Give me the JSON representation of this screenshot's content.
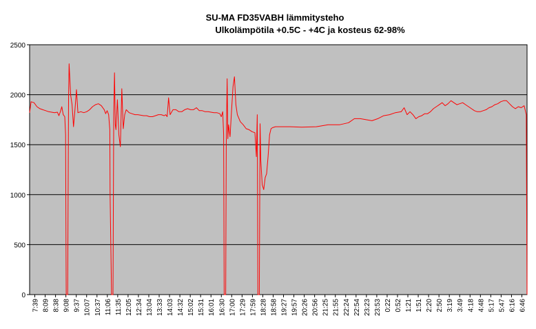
{
  "chart_data": {
    "type": "line",
    "title": "SU-MA FD35VABH lämmitysteho",
    "subtitle": "Ulkolämpötila  +0.5C - +4C ja kosteus 62-98%",
    "xlabel": "",
    "ylabel": "",
    "ylim": [
      0,
      2500
    ],
    "yticks": [
      0,
      500,
      1000,
      1500,
      2000,
      2500
    ],
    "grid": "horizontal",
    "legend": "none",
    "colors": {
      "plot_background": "#c0c0c0",
      "line": "#ff0000",
      "gridline": "#000000"
    },
    "xticks": [
      "7:39",
      "8:09",
      "8:38",
      "9:08",
      "9:37",
      "10:07",
      "10:37",
      "11:06",
      "11:35",
      "12:05",
      "12:34",
      "13:04",
      "13:33",
      "14:03",
      "14:32",
      "15:02",
      "15:31",
      "16:01",
      "16:30",
      "17:00",
      "17:29",
      "17:59",
      "18:28",
      "18:58",
      "19:27",
      "19:57",
      "20:26",
      "20:56",
      "21:25",
      "21:55",
      "22:24",
      "22:54",
      "23:23",
      "23:53",
      "0:22",
      "0:52",
      "1:21",
      "1:51",
      "2:20",
      "2:50",
      "3:19",
      "3:49",
      "4:18",
      "4:48",
      "5:17",
      "5:47",
      "6:16",
      "6:46"
    ],
    "series": [
      {
        "values": [
          [
            0,
            1820
          ],
          [
            1,
            1930
          ],
          [
            3,
            1920
          ],
          [
            5,
            1880
          ],
          [
            7,
            1860
          ],
          [
            9,
            1850
          ],
          [
            11,
            1840
          ],
          [
            13,
            1830
          ],
          [
            15,
            1825
          ],
          [
            17,
            1820
          ],
          [
            19,
            1825
          ],
          [
            20,
            1790
          ],
          [
            21,
            1830
          ],
          [
            22,
            1880
          ],
          [
            23,
            1800
          ],
          [
            24,
            1780
          ],
          [
            24.6,
            1600
          ],
          [
            25,
            0
          ],
          [
            26,
            0
          ],
          [
            26.6,
            1950
          ],
          [
            27,
            2310
          ],
          [
            28,
            2000
          ],
          [
            29,
            1900
          ],
          [
            30,
            1680
          ],
          [
            31,
            1850
          ],
          [
            32,
            2050
          ],
          [
            33,
            1820
          ],
          [
            35,
            1830
          ],
          [
            37,
            1820
          ],
          [
            39,
            1830
          ],
          [
            41,
            1850
          ],
          [
            43,
            1880
          ],
          [
            45,
            1900
          ],
          [
            47,
            1910
          ],
          [
            49,
            1890
          ],
          [
            51,
            1850
          ],
          [
            52,
            1810
          ],
          [
            53,
            1840
          ],
          [
            54,
            1800
          ],
          [
            54.8,
            1650
          ],
          [
            55,
            1000
          ],
          [
            56,
            0
          ],
          [
            57,
            0
          ],
          [
            57.5,
            1800
          ],
          [
            58,
            2220
          ],
          [
            58.6,
            1700
          ],
          [
            59,
            1650
          ],
          [
            60,
            1950
          ],
          [
            61,
            1600
          ],
          [
            62,
            1480
          ],
          [
            63,
            2060
          ],
          [
            64,
            1660
          ],
          [
            65,
            1800
          ],
          [
            66,
            1850
          ],
          [
            68,
            1820
          ],
          [
            70,
            1810
          ],
          [
            72,
            1800
          ],
          [
            74,
            1800
          ],
          [
            76,
            1795
          ],
          [
            78,
            1790
          ],
          [
            80,
            1790
          ],
          [
            82,
            1780
          ],
          [
            84,
            1780
          ],
          [
            86,
            1790
          ],
          [
            88,
            1800
          ],
          [
            90,
            1800
          ],
          [
            92,
            1790
          ],
          [
            93,
            1800
          ],
          [
            94,
            1780
          ],
          [
            95,
            1970
          ],
          [
            96,
            1800
          ],
          [
            98,
            1850
          ],
          [
            100,
            1850
          ],
          [
            102,
            1830
          ],
          [
            104,
            1830
          ],
          [
            106,
            1850
          ],
          [
            108,
            1860
          ],
          [
            110,
            1850
          ],
          [
            112,
            1850
          ],
          [
            114,
            1870
          ],
          [
            116,
            1840
          ],
          [
            118,
            1840
          ],
          [
            120,
            1830
          ],
          [
            122,
            1830
          ],
          [
            124,
            1825
          ],
          [
            126,
            1820
          ],
          [
            128,
            1820
          ],
          [
            130,
            1810
          ],
          [
            131,
            1780
          ],
          [
            132,
            1830
          ],
          [
            132.6,
            1600
          ],
          [
            133,
            0
          ],
          [
            134,
            0
          ],
          [
            134.4,
            1500
          ],
          [
            135,
            2160
          ],
          [
            135.5,
            1560
          ],
          [
            136,
            1700
          ],
          [
            137,
            1580
          ],
          [
            138,
            1830
          ],
          [
            139,
            2080
          ],
          [
            140,
            2180
          ],
          [
            141,
            1900
          ],
          [
            142,
            1800
          ],
          [
            144,
            1730
          ],
          [
            146,
            1700
          ],
          [
            148,
            1660
          ],
          [
            150,
            1650
          ],
          [
            152,
            1630
          ],
          [
            154,
            1620
          ],
          [
            155,
            1380
          ],
          [
            155.6,
            1800
          ],
          [
            156,
            0
          ],
          [
            157,
            0
          ],
          [
            157.5,
            1710
          ],
          [
            158,
            1350
          ],
          [
            159,
            1100
          ],
          [
            160,
            1050
          ],
          [
            161,
            1170
          ],
          [
            162,
            1210
          ],
          [
            163,
            1380
          ],
          [
            164,
            1600
          ],
          [
            165,
            1660
          ],
          [
            166,
            1670
          ],
          [
            168,
            1680
          ],
          [
            172,
            1680
          ],
          [
            178,
            1680
          ],
          [
            186,
            1675
          ],
          [
            196,
            1680
          ],
          [
            204,
            1700
          ],
          [
            212,
            1700
          ],
          [
            218,
            1720
          ],
          [
            222,
            1760
          ],
          [
            226,
            1760
          ],
          [
            230,
            1750
          ],
          [
            234,
            1740
          ],
          [
            238,
            1760
          ],
          [
            242,
            1790
          ],
          [
            246,
            1800
          ],
          [
            250,
            1820
          ],
          [
            254,
            1830
          ],
          [
            256,
            1870
          ],
          [
            258,
            1800
          ],
          [
            260,
            1830
          ],
          [
            262,
            1800
          ],
          [
            264,
            1760
          ],
          [
            266,
            1780
          ],
          [
            268,
            1790
          ],
          [
            270,
            1810
          ],
          [
            272,
            1810
          ],
          [
            274,
            1830
          ],
          [
            276,
            1860
          ],
          [
            278,
            1880
          ],
          [
            280,
            1900
          ],
          [
            282,
            1920
          ],
          [
            284,
            1890
          ],
          [
            286,
            1910
          ],
          [
            288,
            1940
          ],
          [
            290,
            1920
          ],
          [
            292,
            1900
          ],
          [
            294,
            1910
          ],
          [
            296,
            1920
          ],
          [
            298,
            1900
          ],
          [
            300,
            1880
          ],
          [
            302,
            1860
          ],
          [
            304,
            1840
          ],
          [
            306,
            1830
          ],
          [
            308,
            1830
          ],
          [
            310,
            1840
          ],
          [
            312,
            1850
          ],
          [
            314,
            1870
          ],
          [
            316,
            1880
          ],
          [
            318,
            1900
          ],
          [
            320,
            1910
          ],
          [
            322,
            1930
          ],
          [
            324,
            1940
          ],
          [
            326,
            1940
          ],
          [
            328,
            1910
          ],
          [
            330,
            1880
          ],
          [
            332,
            1860
          ],
          [
            334,
            1880
          ],
          [
            336,
            1870
          ],
          [
            338,
            1890
          ],
          [
            339.5,
            1800
          ],
          [
            340,
            0
          ]
        ]
      }
    ]
  }
}
